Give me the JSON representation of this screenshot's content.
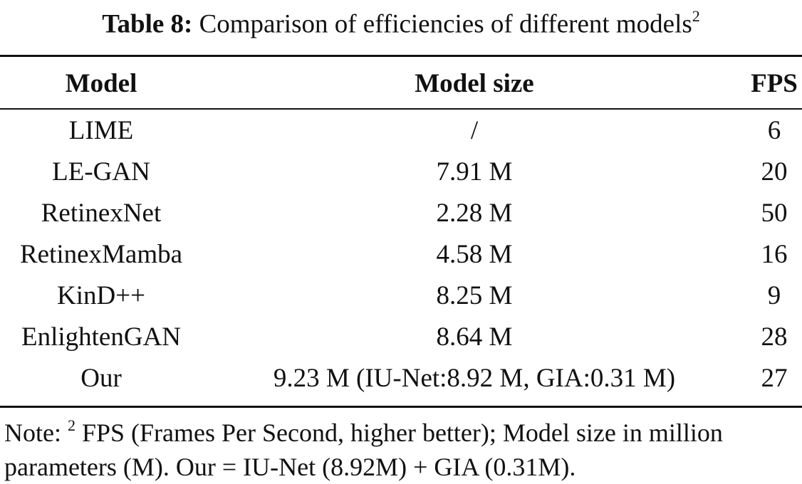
{
  "caption": {
    "label": "Table 8:",
    "text": "Comparison of efficiencies of different models",
    "footnote_mark": "2"
  },
  "table": {
    "headers": [
      "Model",
      "Model size",
      "FPS"
    ],
    "rows": [
      [
        "LIME",
        "/",
        "6"
      ],
      [
        "LE-GAN",
        "7.91 M",
        "20"
      ],
      [
        "RetinexNet",
        "2.28 M",
        "50"
      ],
      [
        "RetinexMamba",
        "4.58 M",
        "16"
      ],
      [
        "KinD++",
        "8.25 M",
        "9"
      ],
      [
        "EnlightenGAN",
        "8.64 M",
        "28"
      ],
      [
        "Our",
        "9.23 M (IU-Net:8.92 M, GIA:0.31 M)",
        "27"
      ]
    ]
  },
  "note": {
    "prefix": "Note:",
    "mark": "2",
    "text": "FPS (Frames Per Second, higher better); Model size in million parameters (M). Our = IU-Net (8.92M) + GIA (0.31M)."
  }
}
